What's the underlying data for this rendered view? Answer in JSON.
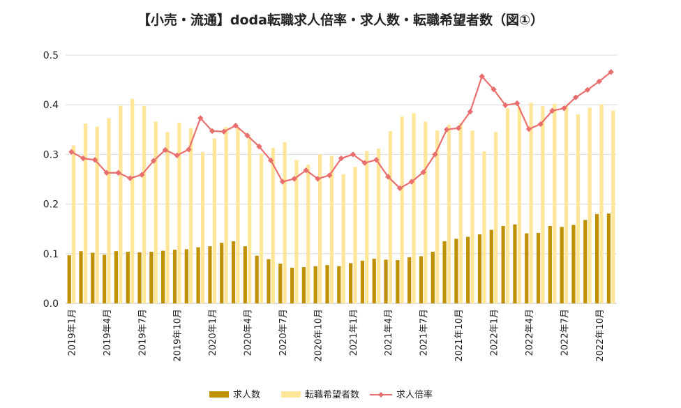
{
  "chart_data": {
    "type": "bar+line",
    "title": "【小売・流通】doda転職求人倍率・求人数・転職希望者数（図①）",
    "ylim": [
      0,
      0.5
    ],
    "yticks": [
      "0.0",
      "0.1",
      "0.2",
      "0.3",
      "0.4",
      "0.5"
    ],
    "categories": [
      "2019年1月",
      "2019年2月",
      "2019年3月",
      "2019年4月",
      "2019年5月",
      "2019年6月",
      "2019年7月",
      "2019年8月",
      "2019年9月",
      "2019年10月",
      "2019年11月",
      "2019年12月",
      "2020年1月",
      "2020年2月",
      "2020年3月",
      "2020年4月",
      "2020年5月",
      "2020年6月",
      "2020年7月",
      "2020年8月",
      "2020年9月",
      "2020年10月",
      "2020年11月",
      "2020年12月",
      "2021年1月",
      "2021年2月",
      "2021年3月",
      "2021年4月",
      "2021年5月",
      "2021年6月",
      "2021年7月",
      "2021年8月",
      "2021年9月",
      "2021年10月",
      "2021年11月",
      "2021年12月",
      "2022年1月",
      "2022年2月",
      "2022年3月",
      "2022年4月",
      "2022年5月",
      "2022年6月",
      "2022年7月",
      "2022年8月",
      "2022年9月",
      "2022年10月",
      "2022年11月"
    ],
    "xtick_labels": [
      "2019年1月",
      "",
      "",
      "2019年4月",
      "",
      "",
      "2019年7月",
      "",
      "",
      "2019年10月",
      "",
      "",
      "2020年1月",
      "",
      "",
      "2020年4月",
      "",
      "",
      "2020年7月",
      "",
      "",
      "2020年10月",
      "",
      "",
      "2021年1月",
      "",
      "",
      "2021年4月",
      "",
      "",
      "2021年7月",
      "",
      "",
      "2021年10月",
      "",
      "",
      "2022年1月",
      "",
      "",
      "2022年4月",
      "",
      "",
      "2022年7月",
      "",
      "",
      "2022年10月",
      ""
    ],
    "series": [
      {
        "name": "求人数",
        "type": "bar",
        "color": "#bf9000",
        "values": [
          0.097,
          0.105,
          0.102,
          0.098,
          0.105,
          0.104,
          0.103,
          0.104,
          0.106,
          0.108,
          0.109,
          0.113,
          0.115,
          0.122,
          0.125,
          0.115,
          0.096,
          0.089,
          0.08,
          0.072,
          0.073,
          0.075,
          0.077,
          0.075,
          0.081,
          0.086,
          0.09,
          0.088,
          0.087,
          0.093,
          0.095,
          0.104,
          0.125,
          0.13,
          0.134,
          0.139,
          0.148,
          0.156,
          0.159,
          0.141,
          0.142,
          0.156,
          0.154,
          0.158,
          0.168,
          0.18,
          0.181
        ]
      },
      {
        "name": "転職希望者数",
        "type": "bar",
        "color": "#ffe699",
        "values": [
          0.318,
          0.362,
          0.356,
          0.373,
          0.398,
          0.412,
          0.398,
          0.366,
          0.345,
          0.364,
          0.353,
          0.305,
          0.332,
          0.355,
          0.353,
          0.335,
          0.302,
          0.313,
          0.325,
          0.289,
          0.279,
          0.3,
          0.297,
          0.26,
          0.275,
          0.307,
          0.312,
          0.347,
          0.376,
          0.383,
          0.366,
          0.348,
          0.36,
          0.363,
          0.348,
          0.306,
          0.345,
          0.393,
          0.395,
          0.404,
          0.397,
          0.402,
          0.397,
          0.381,
          0.394,
          0.401,
          0.388
        ]
      },
      {
        "name": "求人倍率",
        "type": "line",
        "color": "#e96f6f",
        "values": [
          0.305,
          0.292,
          0.289,
          0.263,
          0.263,
          0.252,
          0.259,
          0.287,
          0.309,
          0.298,
          0.31,
          0.373,
          0.347,
          0.346,
          0.358,
          0.338,
          0.316,
          0.288,
          0.245,
          0.251,
          0.268,
          0.251,
          0.258,
          0.292,
          0.3,
          0.283,
          0.289,
          0.255,
          0.232,
          0.245,
          0.264,
          0.3,
          0.35,
          0.353,
          0.386,
          0.457,
          0.431,
          0.399,
          0.403,
          0.351,
          0.361,
          0.388,
          0.393,
          0.415,
          0.43,
          0.447,
          0.466
        ]
      }
    ],
    "legend": [
      "求人数",
      "転職希望者数",
      "求人倍率"
    ],
    "legend_position": "bottom",
    "grid": true
  }
}
